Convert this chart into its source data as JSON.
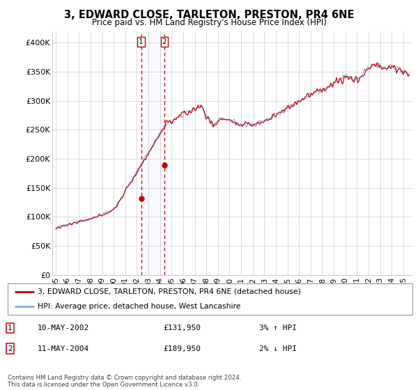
{
  "title": "3, EDWARD CLOSE, TARLETON, PRESTON, PR4 6NE",
  "subtitle": "Price paid vs. HM Land Registry's House Price Index (HPI)",
  "legend_line1": "3, EDWARD CLOSE, TARLETON, PRESTON, PR4 6NE (detached house)",
  "legend_line2": "HPI: Average price, detached house, West Lancashire",
  "sale1_date": "10-MAY-2002",
  "sale1_price": "£131,950",
  "sale1_hpi": "3% ↑ HPI",
  "sale2_date": "11-MAY-2004",
  "sale2_price": "£189,950",
  "sale2_hpi": "2% ↓ HPI",
  "footer": "Contains HM Land Registry data © Crown copyright and database right 2024.\nThis data is licensed under the Open Government Licence v3.0.",
  "hpi_color": "#7aabdb",
  "price_color": "#cc0000",
  "sale_marker_color": "#cc0000",
  "vline_color": "#cc0000",
  "bg_color": "#ffffff",
  "grid_color": "#cccccc",
  "ylim": [
    0,
    420000
  ],
  "yticks": [
    0,
    50000,
    100000,
    150000,
    200000,
    250000,
    300000,
    350000,
    400000
  ],
  "ytick_labels": [
    "£0",
    "£50K",
    "£100K",
    "£150K",
    "£200K",
    "£250K",
    "£300K",
    "£350K",
    "£400K"
  ],
  "sale1_year": 2002.37,
  "sale1_value": 131950,
  "sale2_year": 2004.37,
  "sale2_value": 189950,
  "xlim_left": 1994.7,
  "xlim_right": 2025.8
}
